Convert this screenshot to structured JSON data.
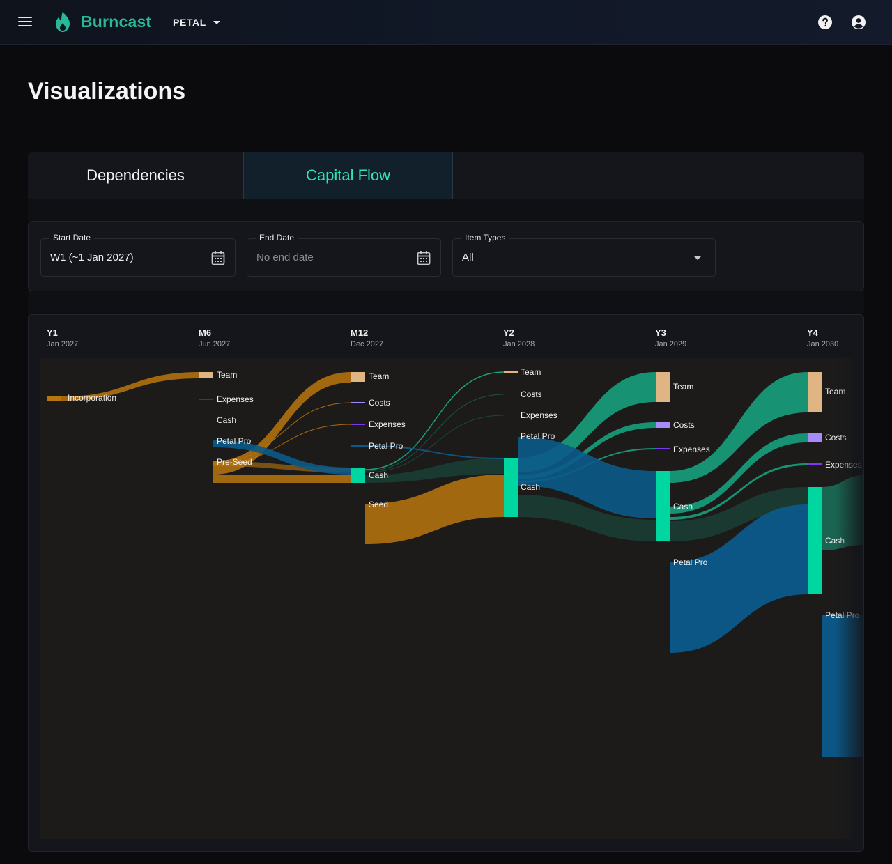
{
  "header": {
    "brand": "Burncast",
    "project": "PETAL",
    "brand_color": "#28b89a",
    "icons": [
      "menu-icon",
      "flame-logo-icon",
      "help-icon",
      "account-icon"
    ]
  },
  "page": {
    "title": "Visualizations"
  },
  "tabs": [
    {
      "label": "Dependencies",
      "active": false
    },
    {
      "label": "Capital Flow",
      "active": true
    }
  ],
  "filters": {
    "start_date": {
      "label": "Start Date",
      "value": "W1 (~1 Jan 2027)"
    },
    "end_date": {
      "label": "End Date",
      "placeholder": "No end date"
    },
    "item_types": {
      "label": "Item Types",
      "value": "All"
    }
  },
  "chart_data": {
    "type": "sankey",
    "columns": [
      {
        "title": "Y1",
        "date": "Jan 2027"
      },
      {
        "title": "M6",
        "date": "Jun 2027"
      },
      {
        "title": "M12",
        "date": "Dec 2027"
      },
      {
        "title": "Y2",
        "date": "Jan 2028"
      },
      {
        "title": "Y3",
        "date": "Jan 2029"
      },
      {
        "title": "Y4",
        "date": "Jan 2030"
      }
    ],
    "colors": {
      "funding": "#b8760f",
      "cash_node": "#00d6a0",
      "team": "#e0b584",
      "costs": "#a78bfa",
      "expenses": "#7c3aed",
      "revenue": "#0b5a8a",
      "cash_flow": "#17b08a",
      "carry": "#1a3c33"
    },
    "nodes": [
      {
        "id": "y1-incorporation",
        "column": 0,
        "label": "Incorporation"
      },
      {
        "id": "m6-team",
        "column": 1,
        "label": "Team"
      },
      {
        "id": "m6-expenses",
        "column": 1,
        "label": "Expenses"
      },
      {
        "id": "m6-cash",
        "column": 1,
        "label": "Cash"
      },
      {
        "id": "m6-petalpro",
        "column": 1,
        "label": "Petal Pro"
      },
      {
        "id": "m6-preseed",
        "column": 1,
        "label": "Pre-Seed"
      },
      {
        "id": "m12-team",
        "column": 2,
        "label": "Team"
      },
      {
        "id": "m12-costs",
        "column": 2,
        "label": "Costs"
      },
      {
        "id": "m12-expenses",
        "column": 2,
        "label": "Expenses"
      },
      {
        "id": "m12-petalpro",
        "column": 2,
        "label": "Petal Pro"
      },
      {
        "id": "m12-cash",
        "column": 2,
        "label": "Cash"
      },
      {
        "id": "m12-seed",
        "column": 2,
        "label": "Seed"
      },
      {
        "id": "y2-team",
        "column": 3,
        "label": "Team"
      },
      {
        "id": "y2-costs",
        "column": 3,
        "label": "Costs"
      },
      {
        "id": "y2-expenses",
        "column": 3,
        "label": "Expenses"
      },
      {
        "id": "y2-petalpro",
        "column": 3,
        "label": "Petal Pro"
      },
      {
        "id": "y2-cash",
        "column": 3,
        "label": "Cash"
      },
      {
        "id": "y3-team",
        "column": 4,
        "label": "Team"
      },
      {
        "id": "y3-costs",
        "column": 4,
        "label": "Costs"
      },
      {
        "id": "y3-expenses",
        "column": 4,
        "label": "Expenses"
      },
      {
        "id": "y3-cash",
        "column": 4,
        "label": "Cash"
      },
      {
        "id": "y3-petalpro",
        "column": 4,
        "label": "Petal Pro"
      },
      {
        "id": "y4-team",
        "column": 5,
        "label": "Team"
      },
      {
        "id": "y4-costs",
        "column": 5,
        "label": "Costs"
      },
      {
        "id": "y4-expenses",
        "column": 5,
        "label": "Expenses"
      },
      {
        "id": "y4-cash",
        "column": 5,
        "label": "Cash"
      },
      {
        "id": "y4-petalpro",
        "column": 5,
        "label": "Petal Pro"
      }
    ]
  }
}
